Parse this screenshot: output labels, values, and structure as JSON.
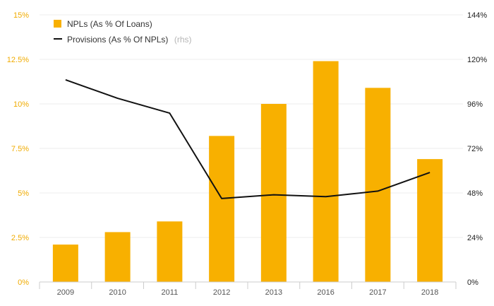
{
  "chart_data": {
    "type": "bar",
    "categories": [
      "2009",
      "2010",
      "2011",
      "2012",
      "2013",
      "2016",
      "2017",
      "2018"
    ],
    "series": [
      {
        "name": "NPLs (As % Of Loans)",
        "type": "bar",
        "axis": "left",
        "color": "#f8b000",
        "values": [
          2.1,
          2.8,
          3.4,
          8.2,
          10.0,
          12.4,
          10.9,
          6.9
        ]
      },
      {
        "name": "Provisions (As % Of NPLs)",
        "name_note": "(rhs)",
        "type": "line",
        "axis": "right",
        "color": "#111111",
        "values": [
          109,
          99,
          91,
          45,
          47,
          46,
          49,
          59
        ]
      }
    ],
    "y_left": {
      "ticks": [
        "0%",
        "2.5%",
        "5%",
        "7.5%",
        "10%",
        "12.5%",
        "15%"
      ],
      "ylim": [
        0,
        15
      ]
    },
    "y_right": {
      "ticks": [
        "0%",
        "24%",
        "48%",
        "72%",
        "96%",
        "120%",
        "144%"
      ],
      "ylim": [
        0,
        144
      ]
    },
    "legend_position": "top-left",
    "grid": true
  }
}
